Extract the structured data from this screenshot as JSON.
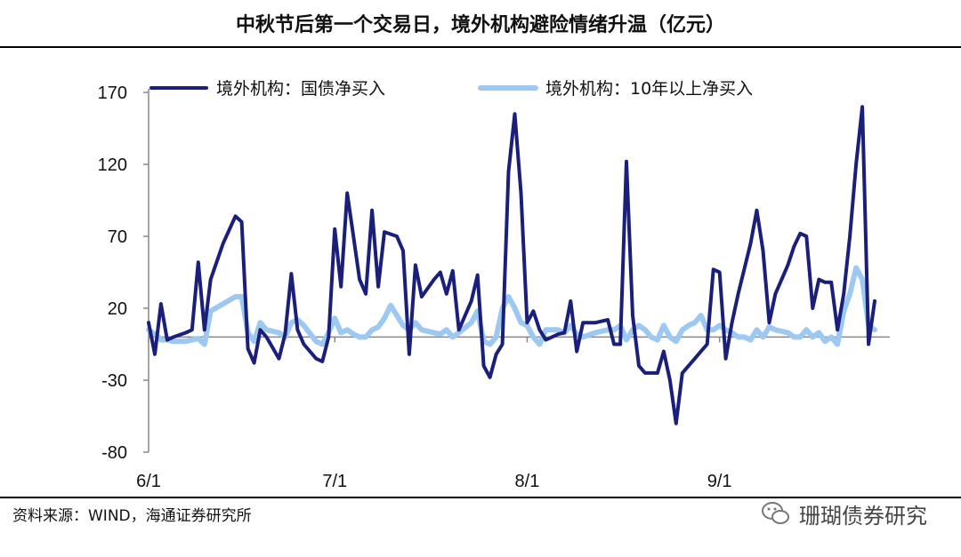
{
  "title": "中秋节后第一个交易日，境外机构避险情绪升温（亿元）",
  "source": "资料来源：WIND，海通证券研究所",
  "watermark": "珊瑚债券研究",
  "colors": {
    "series1": "#1a1f7a",
    "series2": "#9cc8f2",
    "axis": "#888888"
  },
  "chart_data": {
    "type": "line",
    "ylim": [
      -80,
      170
    ],
    "yticks": [
      170,
      120,
      70,
      20,
      -30,
      -80
    ],
    "xlim": [
      0,
      118
    ],
    "xticks": [
      {
        "label": "6/1",
        "x": 0
      },
      {
        "label": "7/1",
        "x": 30
      },
      {
        "label": "8/1",
        "x": 61
      },
      {
        "label": "9/1",
        "x": 92
      }
    ],
    "legend_position": "top",
    "series": [
      {
        "name": "境外机构：国债净买入",
        "color": "#1a1f7a",
        "points": [
          [
            0,
            10
          ],
          [
            1,
            -12
          ],
          [
            2,
            23
          ],
          [
            3,
            -2
          ],
          [
            4,
            0
          ],
          [
            6,
            3
          ],
          [
            7,
            5
          ],
          [
            8,
            52
          ],
          [
            9,
            5
          ],
          [
            10,
            40
          ],
          [
            12,
            65
          ],
          [
            14,
            84
          ],
          [
            15,
            80
          ],
          [
            16,
            -8
          ],
          [
            17,
            -18
          ],
          [
            18,
            5
          ],
          [
            19,
            0
          ],
          [
            21,
            -15
          ],
          [
            22,
            2
          ],
          [
            23,
            44
          ],
          [
            24,
            5
          ],
          [
            25,
            -5
          ],
          [
            27,
            -15
          ],
          [
            28,
            -17
          ],
          [
            29,
            0
          ],
          [
            30,
            75
          ],
          [
            31,
            35
          ],
          [
            32,
            100
          ],
          [
            33,
            70
          ],
          [
            34,
            40
          ],
          [
            35,
            30
          ],
          [
            36,
            88
          ],
          [
            37,
            35
          ],
          [
            38,
            73
          ],
          [
            40,
            70
          ],
          [
            41,
            60
          ],
          [
            42,
            -12
          ],
          [
            43,
            50
          ],
          [
            44,
            28
          ],
          [
            46,
            40
          ],
          [
            47,
            45
          ],
          [
            48,
            30
          ],
          [
            49,
            46
          ],
          [
            50,
            5
          ],
          [
            52,
            25
          ],
          [
            53,
            43
          ],
          [
            54,
            -20
          ],
          [
            55,
            -28
          ],
          [
            56,
            -12
          ],
          [
            57,
            -5
          ],
          [
            58,
            115
          ],
          [
            59,
            155
          ],
          [
            60,
            100
          ],
          [
            61,
            10
          ],
          [
            62,
            18
          ],
          [
            63,
            5
          ],
          [
            64,
            -2
          ],
          [
            65,
            0
          ],
          [
            66,
            2
          ],
          [
            67,
            3
          ],
          [
            68,
            25
          ],
          [
            69,
            -10
          ],
          [
            70,
            10
          ],
          [
            72,
            10
          ],
          [
            74,
            12
          ],
          [
            75,
            -5
          ],
          [
            76,
            -5
          ],
          [
            77,
            122
          ],
          [
            78,
            15
          ],
          [
            79,
            -20
          ],
          [
            80,
            -25
          ],
          [
            81,
            -25
          ],
          [
            82,
            -25
          ],
          [
            83,
            -10
          ],
          [
            84,
            -30
          ],
          [
            85,
            -60
          ],
          [
            86,
            -25
          ],
          [
            87,
            -20
          ],
          [
            88,
            -15
          ],
          [
            89,
            -10
          ],
          [
            90,
            -5
          ],
          [
            91,
            47
          ],
          [
            92,
            45
          ],
          [
            93,
            -15
          ],
          [
            94,
            10
          ],
          [
            95,
            30
          ],
          [
            97,
            65
          ],
          [
            98,
            88
          ],
          [
            99,
            60
          ],
          [
            100,
            10
          ],
          [
            101,
            30
          ],
          [
            103,
            50
          ],
          [
            104,
            63
          ],
          [
            105,
            72
          ],
          [
            106,
            70
          ],
          [
            107,
            20
          ],
          [
            108,
            40
          ],
          [
            109,
            38
          ],
          [
            110,
            38
          ],
          [
            111,
            5
          ],
          [
            112,
            30
          ],
          [
            113,
            70
          ],
          [
            114,
            120
          ],
          [
            115,
            160
          ],
          [
            116,
            -5
          ],
          [
            117,
            25
          ]
        ]
      },
      {
        "name": "境外机构：10年以上净买入",
        "color": "#9cc8f2",
        "points": [
          [
            0,
            5
          ],
          [
            1,
            2
          ],
          [
            2,
            -2
          ],
          [
            3,
            -2
          ],
          [
            4,
            -3
          ],
          [
            6,
            -3
          ],
          [
            7,
            -2
          ],
          [
            8,
            -1
          ],
          [
            9,
            -5
          ],
          [
            10,
            18
          ],
          [
            12,
            23
          ],
          [
            14,
            28
          ],
          [
            15,
            28
          ],
          [
            16,
            3
          ],
          [
            17,
            -3
          ],
          [
            18,
            10
          ],
          [
            19,
            5
          ],
          [
            21,
            3
          ],
          [
            22,
            0
          ],
          [
            23,
            10
          ],
          [
            24,
            12
          ],
          [
            25,
            8
          ],
          [
            27,
            -3
          ],
          [
            28,
            -5
          ],
          [
            29,
            3
          ],
          [
            30,
            13
          ],
          [
            31,
            3
          ],
          [
            32,
            5
          ],
          [
            33,
            2
          ],
          [
            34,
            0
          ],
          [
            35,
            0
          ],
          [
            36,
            5
          ],
          [
            37,
            7
          ],
          [
            38,
            13
          ],
          [
            39,
            22
          ],
          [
            40,
            15
          ],
          [
            41,
            8
          ],
          [
            42,
            5
          ],
          [
            43,
            10
          ],
          [
            44,
            5
          ],
          [
            46,
            3
          ],
          [
            47,
            2
          ],
          [
            48,
            5
          ],
          [
            49,
            0
          ],
          [
            50,
            3
          ],
          [
            52,
            10
          ],
          [
            53,
            18
          ],
          [
            54,
            -3
          ],
          [
            55,
            -5
          ],
          [
            56,
            0
          ],
          [
            57,
            20
          ],
          [
            58,
            28
          ],
          [
            59,
            20
          ],
          [
            60,
            10
          ],
          [
            61,
            8
          ],
          [
            62,
            0
          ],
          [
            63,
            -5
          ],
          [
            64,
            5
          ],
          [
            65,
            5
          ],
          [
            66,
            5
          ],
          [
            67,
            3
          ],
          [
            68,
            8
          ],
          [
            69,
            2
          ],
          [
            70,
            0
          ],
          [
            72,
            3
          ],
          [
            74,
            5
          ],
          [
            75,
            5
          ],
          [
            76,
            8
          ],
          [
            77,
            -2
          ],
          [
            78,
            5
          ],
          [
            79,
            8
          ],
          [
            80,
            5
          ],
          [
            81,
            0
          ],
          [
            82,
            -2
          ],
          [
            83,
            8
          ],
          [
            84,
            0
          ],
          [
            85,
            -3
          ],
          [
            86,
            5
          ],
          [
            87,
            8
          ],
          [
            88,
            10
          ],
          [
            89,
            15
          ],
          [
            90,
            5
          ],
          [
            91,
            5
          ],
          [
            92,
            8
          ],
          [
            93,
            5
          ],
          [
            94,
            3
          ],
          [
            95,
            0
          ],
          [
            96,
            0
          ],
          [
            97,
            -2
          ],
          [
            98,
            5
          ],
          [
            99,
            0
          ],
          [
            100,
            7
          ],
          [
            101,
            5
          ],
          [
            103,
            3
          ],
          [
            104,
            0
          ],
          [
            105,
            0
          ],
          [
            106,
            5
          ],
          [
            107,
            0
          ],
          [
            108,
            3
          ],
          [
            109,
            -3
          ],
          [
            110,
            0
          ],
          [
            111,
            -5
          ],
          [
            112,
            18
          ],
          [
            113,
            30
          ],
          [
            114,
            48
          ],
          [
            115,
            40
          ],
          [
            116,
            8
          ],
          [
            117,
            5
          ]
        ]
      }
    ]
  }
}
